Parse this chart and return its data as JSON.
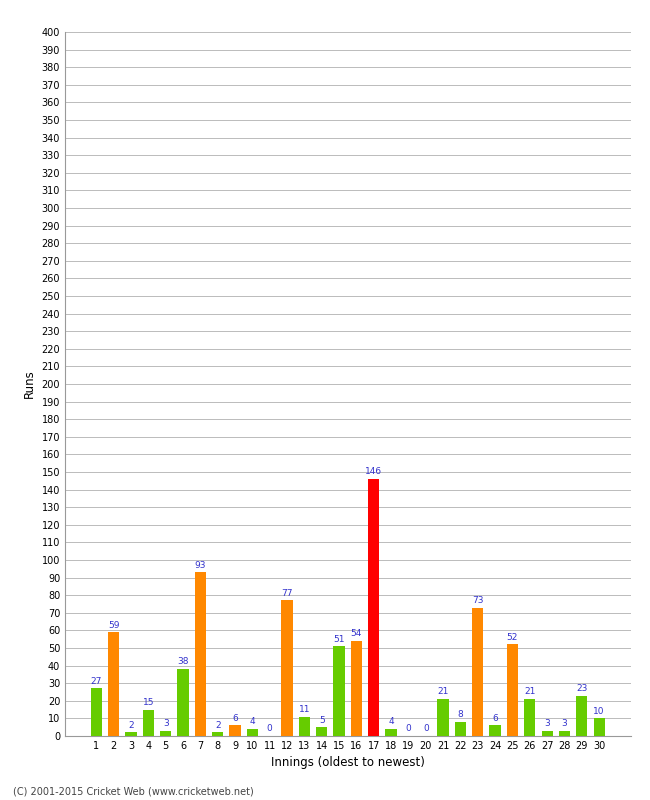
{
  "innings": [
    1,
    2,
    3,
    4,
    5,
    6,
    7,
    8,
    9,
    10,
    11,
    12,
    13,
    14,
    15,
    16,
    17,
    18,
    19,
    20,
    21,
    22,
    23,
    24,
    25,
    26,
    27,
    28,
    29,
    30
  ],
  "values": [
    27,
    59,
    2,
    15,
    3,
    38,
    93,
    2,
    6,
    4,
    0,
    77,
    11,
    5,
    51,
    54,
    146,
    4,
    0,
    0,
    21,
    8,
    73,
    6,
    52,
    21,
    3,
    3,
    23,
    10
  ],
  "colors": [
    "#66cc00",
    "#ff8800",
    "#66cc00",
    "#66cc00",
    "#66cc00",
    "#66cc00",
    "#ff8800",
    "#66cc00",
    "#ff8800",
    "#66cc00",
    "#66cc00",
    "#ff8800",
    "#66cc00",
    "#66cc00",
    "#66cc00",
    "#ff8800",
    "#ff0000",
    "#66cc00",
    "#66cc00",
    "#66cc00",
    "#66cc00",
    "#66cc00",
    "#ff8800",
    "#66cc00",
    "#ff8800",
    "#66cc00",
    "#66cc00",
    "#66cc00",
    "#66cc00",
    "#66cc00"
  ],
  "xlabel": "Innings (oldest to newest)",
  "ylabel": "Runs",
  "ylim": [
    0,
    400
  ],
  "yticks": [
    0,
    10,
    20,
    30,
    40,
    50,
    60,
    70,
    80,
    90,
    100,
    110,
    120,
    130,
    140,
    150,
    160,
    170,
    180,
    190,
    200,
    210,
    220,
    230,
    240,
    250,
    260,
    270,
    280,
    290,
    300,
    310,
    320,
    330,
    340,
    350,
    360,
    370,
    380,
    390,
    400
  ],
  "footer": "(C) 2001-2015 Cricket Web (www.cricketweb.net)",
  "label_color": "#3333cc",
  "background_color": "#ffffff",
  "grid_color": "#bbbbbb",
  "fig_width": 6.5,
  "fig_height": 8.0,
  "dpi": 100
}
